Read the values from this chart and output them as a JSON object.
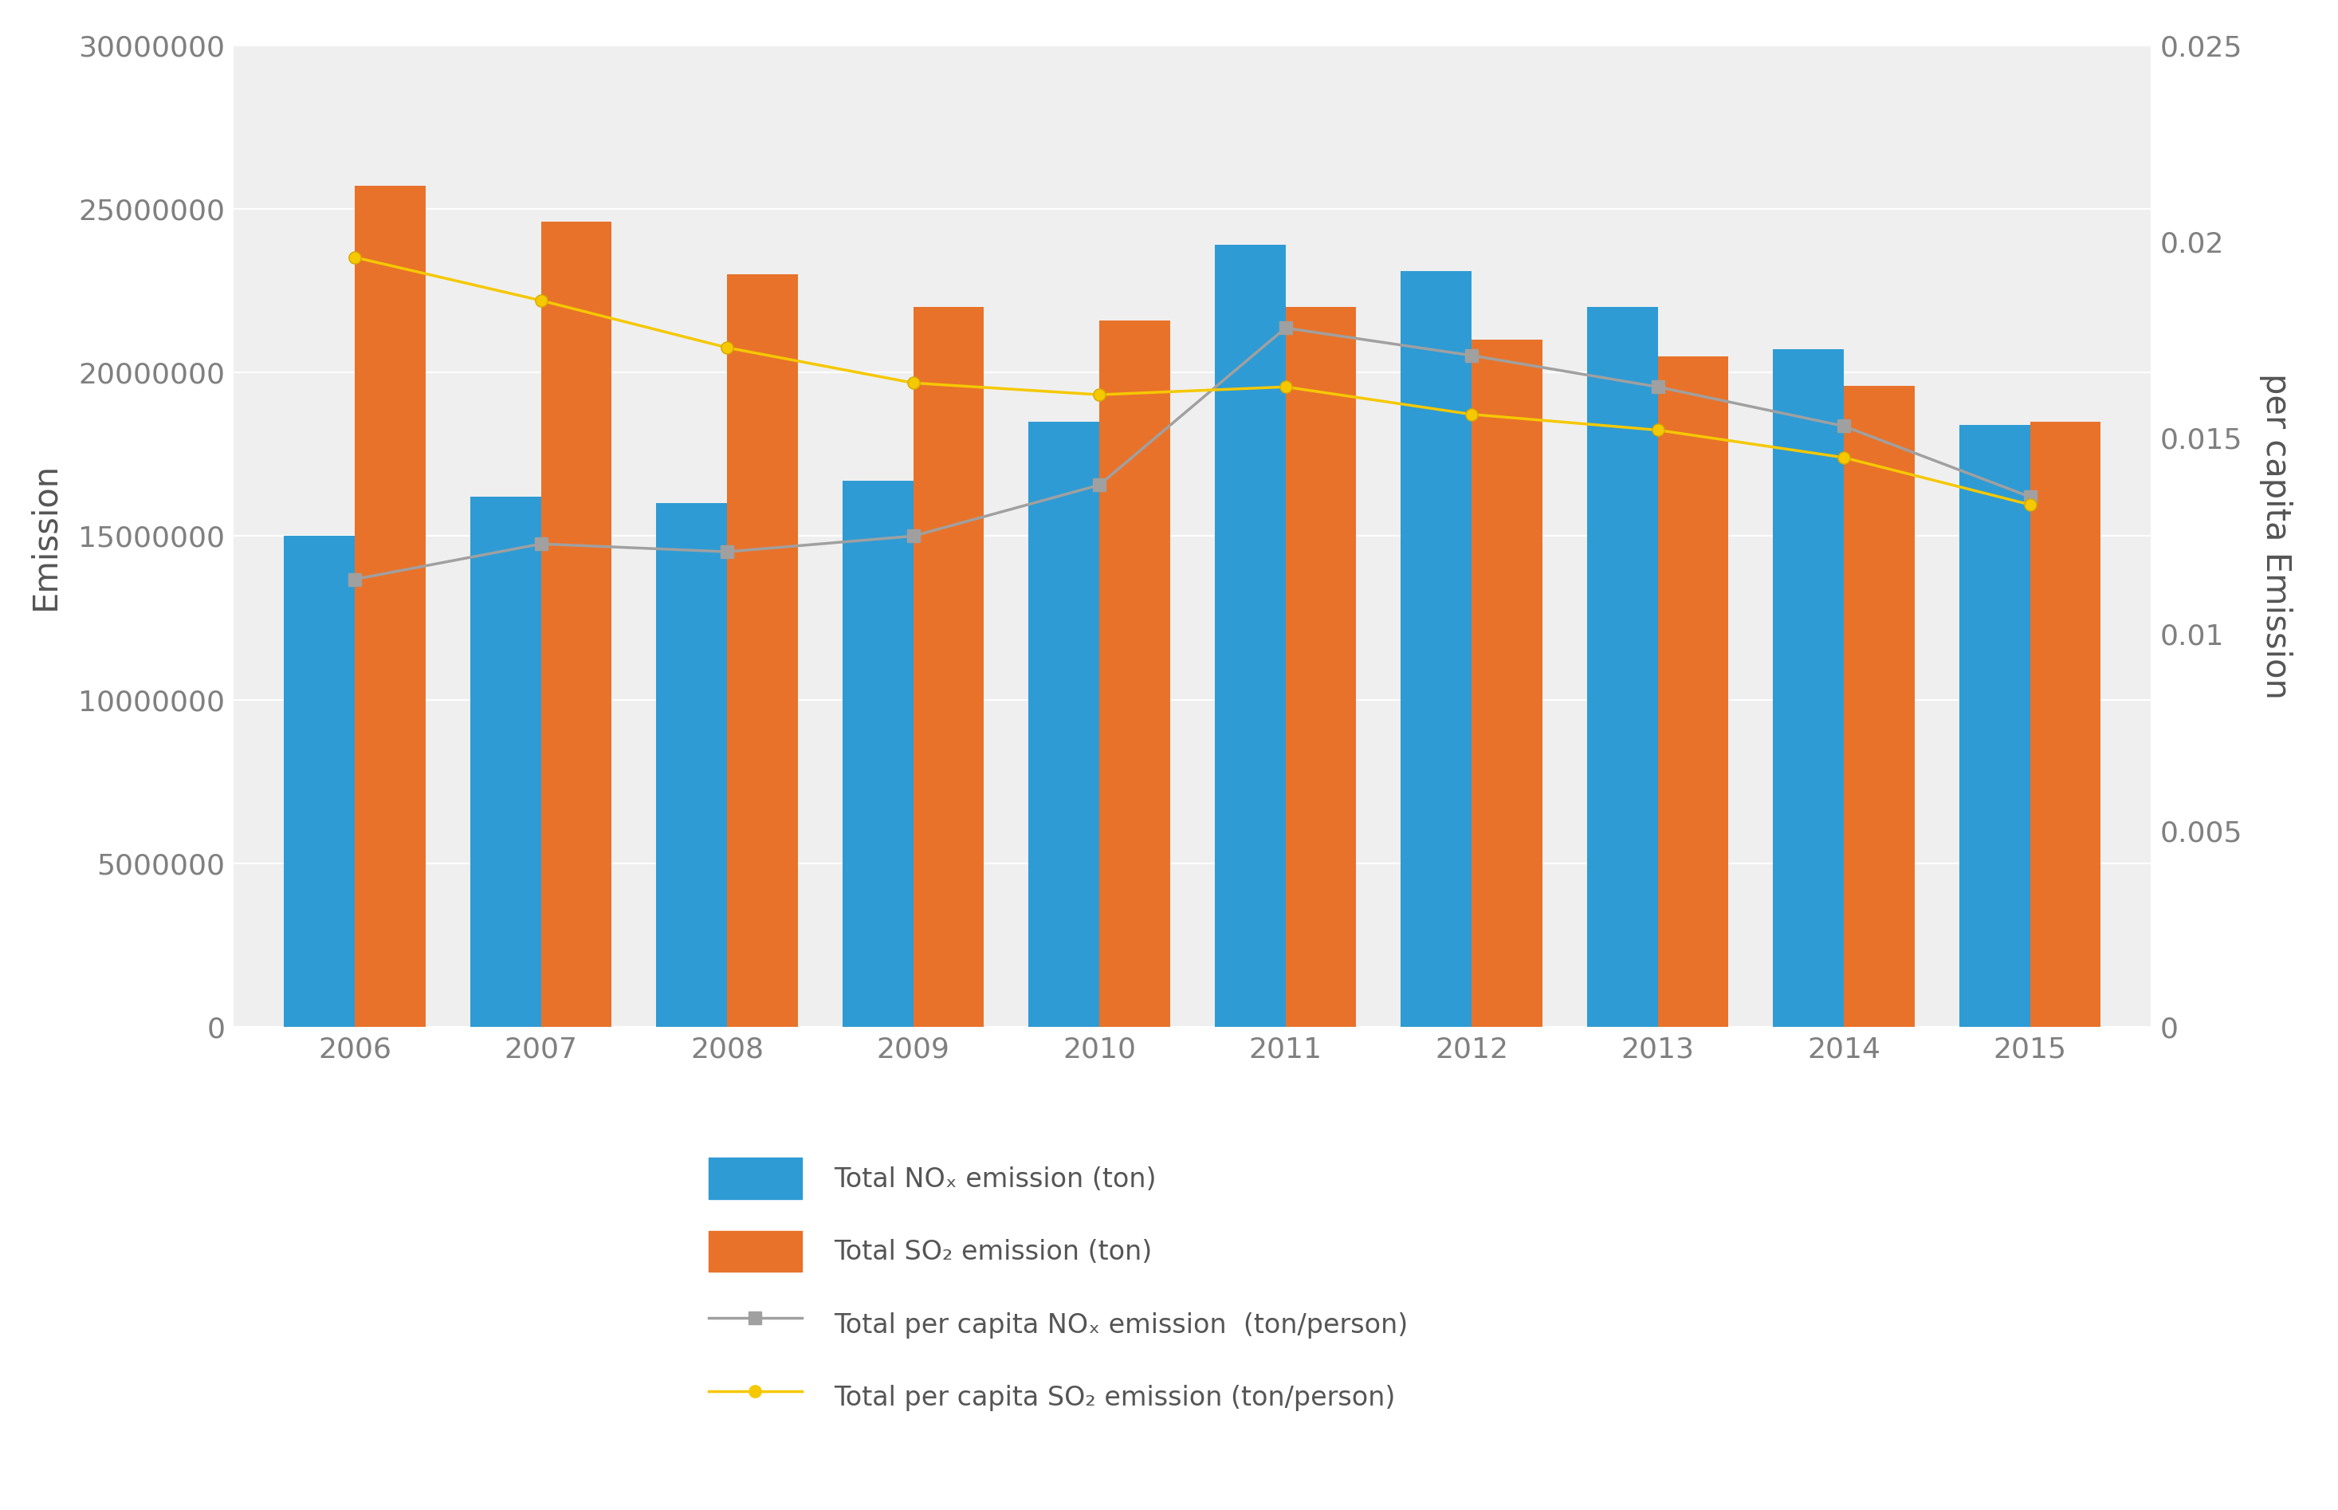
{
  "years": [
    2006,
    2007,
    2008,
    2009,
    2010,
    2011,
    2012,
    2013,
    2014,
    2015
  ],
  "nox_total": [
    15000000,
    16200000,
    16000000,
    16700000,
    18500000,
    23900000,
    23100000,
    22000000,
    20700000,
    18400000
  ],
  "so2_total": [
    25700000,
    24600000,
    23000000,
    22000000,
    21600000,
    22000000,
    21000000,
    20500000,
    19600000,
    18500000
  ],
  "nox_per_capita": [
    0.0114,
    0.0123,
    0.0121,
    0.0125,
    0.0138,
    0.0178,
    0.0171,
    0.0163,
    0.0153,
    0.0135
  ],
  "so2_per_capita": [
    0.0196,
    0.0185,
    0.0173,
    0.0164,
    0.0161,
    0.0163,
    0.0156,
    0.0152,
    0.0145,
    0.0133
  ],
  "nox_color": "#2E9BD4",
  "so2_color": "#E8722A",
  "nox_pc_color": "#A0A0A0",
  "so2_pc_color": "#F5C800",
  "ylabel_left": "Emission",
  "ylabel_right": "per capita Emission",
  "ylim_left": [
    0,
    30000000
  ],
  "ylim_right": [
    0,
    0.025
  ],
  "yticks_left": [
    0,
    5000000,
    10000000,
    15000000,
    20000000,
    25000000,
    30000000
  ],
  "yticks_right": [
    0,
    0.005,
    0.01,
    0.015,
    0.02,
    0.025
  ],
  "background_color": "#FFFFFF",
  "plot_bg_color": "#EFEFEF",
  "grid_color": "#FFFFFF",
  "tick_color": "#808080",
  "label_color": "#555555",
  "tick_fontsize": 26,
  "axis_label_fontsize": 30,
  "legend_fontsize": 24
}
